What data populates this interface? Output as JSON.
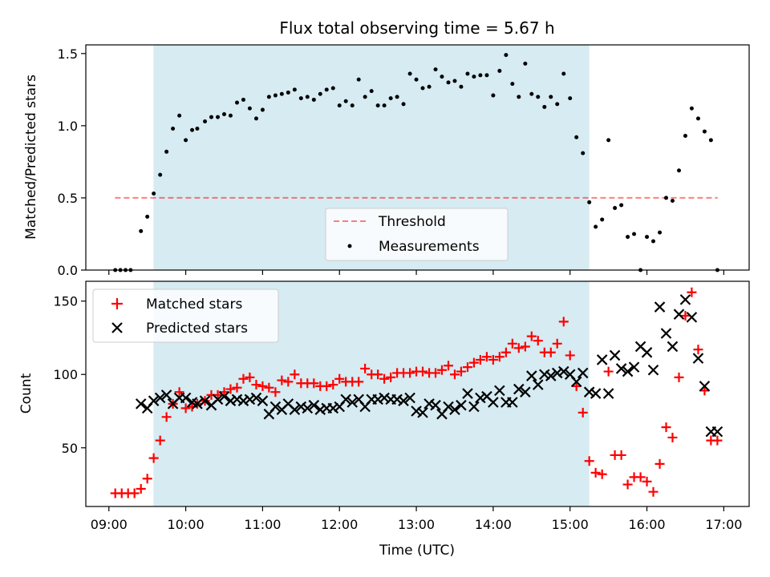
{
  "colors": {
    "span": "#add8e6",
    "threshold": "#ff0000",
    "measurements": "#000000",
    "matched": "#ff0000",
    "predicted": "#000000"
  },
  "chart_data": [
    {
      "type": "scatter",
      "title": "Flux total observing time = 5.67 h",
      "xlabel": "",
      "ylabel": "Matched/Predicted stars",
      "xlim": [
        8.7,
        17.33
      ],
      "ylim": [
        0,
        1.56
      ],
      "yticks": [
        0.0,
        0.5,
        1.0,
        1.5
      ],
      "ytick_labels": [
        "0.0",
        "0.5",
        "1.0",
        "1.5"
      ],
      "xticks": [
        9,
        10,
        11,
        12,
        13,
        14,
        15,
        16,
        17
      ],
      "shaded_span": [
        9.58,
        15.25
      ],
      "threshold": {
        "name": "Threshold",
        "y": 0.5,
        "x_range": [
          9.08,
          16.92
        ]
      },
      "legend": {
        "placement": "lower-center"
      },
      "series": [
        {
          "name": "Measurements",
          "x": [
            9.083,
            9.15,
            9.217,
            9.283,
            9.417,
            9.5,
            9.583,
            9.667,
            9.75,
            9.833,
            9.917,
            10.0,
            10.083,
            10.15,
            10.25,
            10.333,
            10.417,
            10.5,
            10.583,
            10.667,
            10.75,
            10.833,
            10.917,
            11.0,
            11.083,
            11.167,
            11.25,
            11.333,
            11.417,
            11.5,
            11.583,
            11.667,
            11.75,
            11.833,
            11.917,
            12.0,
            12.083,
            12.167,
            12.25,
            12.333,
            12.417,
            12.5,
            12.583,
            12.667,
            12.75,
            12.833,
            12.917,
            13.0,
            13.083,
            13.167,
            13.25,
            13.333,
            13.417,
            13.5,
            13.583,
            13.667,
            13.75,
            13.833,
            13.917,
            14.0,
            14.083,
            14.167,
            14.25,
            14.333,
            14.417,
            14.5,
            14.583,
            14.667,
            14.75,
            14.833,
            14.917,
            15.0,
            15.083,
            15.167,
            15.25,
            15.333,
            15.417,
            15.5,
            15.583,
            15.667,
            15.75,
            15.833,
            15.917,
            16.0,
            16.083,
            16.167,
            16.25,
            16.333,
            16.417,
            16.5,
            16.583,
            16.667,
            16.75,
            16.833,
            16.917
          ],
          "y": [
            0.0,
            0.0,
            0.0,
            0.0,
            0.27,
            0.37,
            0.53,
            0.66,
            0.82,
            0.98,
            1.07,
            0.9,
            0.97,
            0.98,
            1.03,
            1.06,
            1.06,
            1.08,
            1.07,
            1.16,
            1.18,
            1.12,
            1.05,
            1.11,
            1.2,
            1.21,
            1.22,
            1.23,
            1.25,
            1.19,
            1.2,
            1.18,
            1.22,
            1.25,
            1.26,
            1.14,
            1.17,
            1.14,
            1.32,
            1.2,
            1.24,
            1.14,
            1.14,
            1.19,
            1.2,
            1.15,
            1.36,
            1.32,
            1.26,
            1.27,
            1.39,
            1.34,
            1.3,
            1.31,
            1.27,
            1.36,
            1.34,
            1.35,
            1.35,
            1.21,
            1.38,
            1.49,
            1.29,
            1.2,
            1.43,
            1.22,
            1.2,
            1.13,
            1.2,
            1.15,
            1.36,
            1.19,
            0.92,
            0.81,
            0.47,
            0.3,
            0.35,
            0.9,
            0.43,
            0.45,
            0.23,
            0.25,
            0.0,
            0.23,
            0.2,
            0.26,
            0.5,
            0.48,
            0.69,
            0.93,
            1.12,
            1.05,
            0.96,
            0.9,
            0.0
          ]
        }
      ]
    },
    {
      "type": "scatter",
      "title": "",
      "xlabel": "Time (UTC)",
      "ylabel": "Count",
      "xlim": [
        8.7,
        17.33
      ],
      "ylim": [
        10,
        163.5
      ],
      "yticks": [
        50,
        100,
        150
      ],
      "ytick_labels": [
        "50",
        "100",
        "150"
      ],
      "xticks": [
        9,
        10,
        11,
        12,
        13,
        14,
        15,
        16,
        17
      ],
      "xtick_labels": [
        "09:00",
        "10:00",
        "11:00",
        "12:00",
        "13:00",
        "14:00",
        "15:00",
        "16:00",
        "17:00"
      ],
      "shaded_span": [
        9.58,
        15.25
      ],
      "legend": {
        "placement": "upper-left"
      },
      "series": [
        {
          "name": "Matched stars",
          "marker": "plus",
          "x": [
            9.083,
            9.167,
            9.25,
            9.333,
            9.417,
            9.5,
            9.583,
            9.667,
            9.75,
            9.833,
            9.917,
            10.0,
            10.083,
            10.15,
            10.25,
            10.333,
            10.417,
            10.5,
            10.583,
            10.667,
            10.75,
            10.833,
            10.917,
            11.0,
            11.083,
            11.167,
            11.25,
            11.333,
            11.417,
            11.5,
            11.583,
            11.667,
            11.75,
            11.833,
            11.917,
            12.0,
            12.083,
            12.167,
            12.25,
            12.333,
            12.417,
            12.5,
            12.583,
            12.667,
            12.75,
            12.833,
            12.917,
            13.0,
            13.083,
            13.167,
            13.25,
            13.333,
            13.417,
            13.5,
            13.583,
            13.667,
            13.75,
            13.833,
            13.917,
            14.0,
            14.083,
            14.167,
            14.25,
            14.333,
            14.417,
            14.5,
            14.583,
            14.667,
            14.75,
            14.833,
            14.917,
            15.0,
            15.083,
            15.167,
            15.25,
            15.333,
            15.417,
            15.5,
            15.583,
            15.667,
            15.75,
            15.833,
            15.917,
            16.0,
            16.083,
            16.167,
            16.25,
            16.333,
            16.417,
            16.5,
            16.583,
            16.667,
            16.75,
            16.833,
            16.917
          ],
          "y": [
            19,
            19,
            19,
            19,
            22,
            29,
            43,
            55,
            71,
            80,
            88,
            77,
            78,
            80,
            82,
            86,
            86,
            88,
            90,
            91,
            97,
            98,
            93,
            92,
            91,
            88,
            96,
            95,
            100,
            94,
            94,
            94,
            92,
            92,
            93,
            97,
            95,
            95,
            95,
            104,
            100,
            100,
            97,
            98,
            101,
            101,
            101,
            102,
            102,
            101,
            101,
            103,
            106,
            100,
            102,
            105,
            108,
            110,
            112,
            110,
            112,
            115,
            121,
            118,
            119,
            126,
            123,
            115,
            115,
            121,
            136,
            113,
            92,
            74,
            41,
            33,
            32,
            102,
            45,
            45,
            25,
            30,
            30,
            27,
            20,
            39,
            64,
            57,
            98,
            140,
            156,
            117,
            89,
            55,
            55
          ]
        },
        {
          "name": "Predicted stars",
          "marker": "x",
          "x": [
            9.417,
            9.5,
            9.583,
            9.667,
            9.75,
            9.833,
            9.917,
            10.0,
            10.083,
            10.15,
            10.25,
            10.333,
            10.417,
            10.5,
            10.583,
            10.667,
            10.75,
            10.833,
            10.917,
            11.0,
            11.083,
            11.167,
            11.25,
            11.333,
            11.417,
            11.5,
            11.583,
            11.667,
            11.75,
            11.833,
            11.917,
            12.0,
            12.083,
            12.167,
            12.25,
            12.333,
            12.417,
            12.5,
            12.583,
            12.667,
            12.75,
            12.833,
            12.917,
            13.0,
            13.083,
            13.167,
            13.25,
            13.333,
            13.417,
            13.5,
            13.583,
            13.667,
            13.75,
            13.833,
            13.917,
            14.0,
            14.083,
            14.167,
            14.25,
            14.333,
            14.417,
            14.5,
            14.583,
            14.667,
            14.75,
            14.833,
            14.917,
            15.0,
            15.083,
            15.167,
            15.25,
            15.333,
            15.417,
            15.5,
            15.583,
            15.667,
            15.75,
            15.833,
            15.917,
            16.0,
            16.083,
            16.167,
            16.25,
            16.333,
            16.417,
            16.5,
            16.583,
            16.667,
            16.75,
            16.833,
            16.917
          ],
          "y": [
            80,
            77,
            82,
            84,
            86,
            80,
            84,
            84,
            81,
            80,
            82,
            79,
            83,
            85,
            82,
            83,
            82,
            83,
            84,
            82,
            73,
            78,
            76,
            80,
            76,
            78,
            77,
            79,
            76,
            77,
            77,
            78,
            83,
            81,
            83,
            78,
            83,
            83,
            84,
            83,
            83,
            82,
            84,
            75,
            74,
            80,
            79,
            73,
            78,
            76,
            79,
            87,
            78,
            84,
            85,
            81,
            89,
            81,
            81,
            90,
            88,
            99,
            93,
            100,
            99,
            101,
            102,
            100,
            95,
            101,
            88,
            87,
            110,
            87,
            113,
            104,
            102,
            105,
            119,
            115,
            103,
            146,
            128,
            119,
            141,
            151,
            139,
            111,
            92,
            61,
            61
          ]
        }
      ]
    }
  ]
}
